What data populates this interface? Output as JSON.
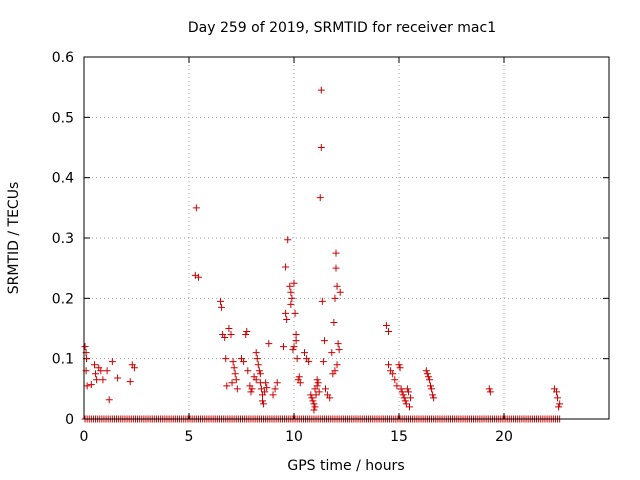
{
  "chart_data": {
    "type": "scatter",
    "title": "Day 259 of 2019, SRMTID for receiver mac1",
    "xlabel": "GPS time / hours",
    "ylabel": "SRMTID / TECUs",
    "xlim": [
      0,
      25
    ],
    "ylim": [
      0,
      0.6
    ],
    "xticks": [
      0,
      5,
      10,
      15,
      20
    ],
    "yticks": [
      0,
      0.1,
      0.2,
      0.3,
      0.4,
      0.5,
      0.6
    ],
    "xtick_labels": [
      "0",
      "5",
      "10",
      "15",
      "20"
    ],
    "ytick_labels": [
      "0",
      "0.1",
      "0.2",
      "0.3",
      "0.4",
      "0.5",
      "0.6"
    ],
    "grid": true,
    "marker": "+",
    "series": [
      {
        "name": "SRMTID",
        "color": "#cc0000",
        "points": [
          [
            0.05,
            0.12
          ],
          [
            0.1,
            0.11
          ],
          [
            0.12,
            0.1
          ],
          [
            0.1,
            0.08
          ],
          [
            0.15,
            0.055
          ],
          [
            0.35,
            0.057
          ],
          [
            0.5,
            0.09
          ],
          [
            0.55,
            0.075
          ],
          [
            0.6,
            0.065
          ],
          [
            0.7,
            0.085
          ],
          [
            0.8,
            0.08
          ],
          [
            0.9,
            0.065
          ],
          [
            1.1,
            0.08
          ],
          [
            1.2,
            0.032
          ],
          [
            1.35,
            0.095
          ],
          [
            1.6,
            0.068
          ],
          [
            2.2,
            0.062
          ],
          [
            2.3,
            0.09
          ],
          [
            2.4,
            0.085
          ],
          [
            5.3,
            0.238
          ],
          [
            5.35,
            0.35
          ],
          [
            5.45,
            0.235
          ],
          [
            6.5,
            0.195
          ],
          [
            6.55,
            0.185
          ],
          [
            6.6,
            0.14
          ],
          [
            6.7,
            0.135
          ],
          [
            6.75,
            0.1
          ],
          [
            6.8,
            0.055
          ],
          [
            6.9,
            0.15
          ],
          [
            7.0,
            0.14
          ],
          [
            7.05,
            0.06
          ],
          [
            7.1,
            0.095
          ],
          [
            7.15,
            0.085
          ],
          [
            7.2,
            0.075
          ],
          [
            7.25,
            0.065
          ],
          [
            7.3,
            0.05
          ],
          [
            7.5,
            0.1
          ],
          [
            7.6,
            0.095
          ],
          [
            7.7,
            0.14
          ],
          [
            7.75,
            0.145
          ],
          [
            7.8,
            0.08
          ],
          [
            7.9,
            0.055
          ],
          [
            7.95,
            0.045
          ],
          [
            8.0,
            0.05
          ],
          [
            8.1,
            0.07
          ],
          [
            8.2,
            0.065
          ],
          [
            8.2,
            0.11
          ],
          [
            8.25,
            0.1
          ],
          [
            8.3,
            0.09
          ],
          [
            8.35,
            0.08
          ],
          [
            8.4,
            0.075
          ],
          [
            8.4,
            0.06
          ],
          [
            8.45,
            0.05
          ],
          [
            8.5,
            0.04
          ],
          [
            8.5,
            0.03
          ],
          [
            8.55,
            0.025
          ],
          [
            8.6,
            0.045
          ],
          [
            8.65,
            0.06
          ],
          [
            8.7,
            0.052
          ],
          [
            8.8,
            0.125
          ],
          [
            9.0,
            0.04
          ],
          [
            9.1,
            0.05
          ],
          [
            9.2,
            0.06
          ],
          [
            9.5,
            0.12
          ],
          [
            9.6,
            0.175
          ],
          [
            9.65,
            0.165
          ],
          [
            9.7,
            0.297
          ],
          [
            9.6,
            0.252
          ],
          [
            9.8,
            0.22
          ],
          [
            9.85,
            0.21
          ],
          [
            9.9,
            0.2
          ],
          [
            9.85,
            0.19
          ],
          [
            9.95,
            0.115
          ],
          [
            10.0,
            0.12
          ],
          [
            10.0,
            0.225
          ],
          [
            10.05,
            0.175
          ],
          [
            10.1,
            0.14
          ],
          [
            10.1,
            0.13
          ],
          [
            10.15,
            0.1
          ],
          [
            10.2,
            0.065
          ],
          [
            10.25,
            0.07
          ],
          [
            10.3,
            0.06
          ],
          [
            10.5,
            0.11
          ],
          [
            10.6,
            0.1
          ],
          [
            10.7,
            0.095
          ],
          [
            10.8,
            0.04
          ],
          [
            10.85,
            0.035
          ],
          [
            10.9,
            0.03
          ],
          [
            10.95,
            0.025
          ],
          [
            10.95,
            0.015
          ],
          [
            11.0,
            0.02
          ],
          [
            11.0,
            0.05
          ],
          [
            11.05,
            0.04
          ],
          [
            11.1,
            0.055
          ],
          [
            11.1,
            0.065
          ],
          [
            11.15,
            0.06
          ],
          [
            11.2,
            0.045
          ],
          [
            11.25,
            0.367
          ],
          [
            11.3,
            0.545
          ],
          [
            11.3,
            0.45
          ],
          [
            11.35,
            0.195
          ],
          [
            11.4,
            0.095
          ],
          [
            11.45,
            0.13
          ],
          [
            11.5,
            0.05
          ],
          [
            11.6,
            0.04
          ],
          [
            11.7,
            0.035
          ],
          [
            11.8,
            0.11
          ],
          [
            11.85,
            0.075
          ],
          [
            11.9,
            0.16
          ],
          [
            11.95,
            0.2
          ],
          [
            12.0,
            0.275
          ],
          [
            12.0,
            0.25
          ],
          [
            12.05,
            0.22
          ],
          [
            12.1,
            0.125
          ],
          [
            12.15,
            0.115
          ],
          [
            12.2,
            0.21
          ],
          [
            12.05,
            0.09
          ],
          [
            11.95,
            0.08
          ],
          [
            14.4,
            0.155
          ],
          [
            14.5,
            0.145
          ],
          [
            14.5,
            0.09
          ],
          [
            14.6,
            0.08
          ],
          [
            14.7,
            0.075
          ],
          [
            14.8,
            0.065
          ],
          [
            14.9,
            0.055
          ],
          [
            15.0,
            0.09
          ],
          [
            15.05,
            0.085
          ],
          [
            15.1,
            0.05
          ],
          [
            15.15,
            0.045
          ],
          [
            15.2,
            0.04
          ],
          [
            15.25,
            0.035
          ],
          [
            15.3,
            0.03
          ],
          [
            15.35,
            0.025
          ],
          [
            15.4,
            0.05
          ],
          [
            15.45,
            0.045
          ],
          [
            15.5,
            0.02
          ],
          [
            15.55,
            0.035
          ],
          [
            16.3,
            0.08
          ],
          [
            16.35,
            0.075
          ],
          [
            16.4,
            0.07
          ],
          [
            16.45,
            0.065
          ],
          [
            16.5,
            0.055
          ],
          [
            16.55,
            0.05
          ],
          [
            16.6,
            0.04
          ],
          [
            16.65,
            0.035
          ],
          [
            19.3,
            0.05
          ],
          [
            19.35,
            0.045
          ],
          [
            22.4,
            0.05
          ],
          [
            22.5,
            0.045
          ],
          [
            22.55,
            0.035
          ],
          [
            22.6,
            0.02
          ],
          [
            22.65,
            0.025
          ]
        ]
      },
      {
        "name": "SRMTID baseline",
        "color": "#cc0000",
        "x_range": [
          0.05,
          22.65
        ],
        "y_value": 0,
        "step": 0.1
      }
    ]
  }
}
